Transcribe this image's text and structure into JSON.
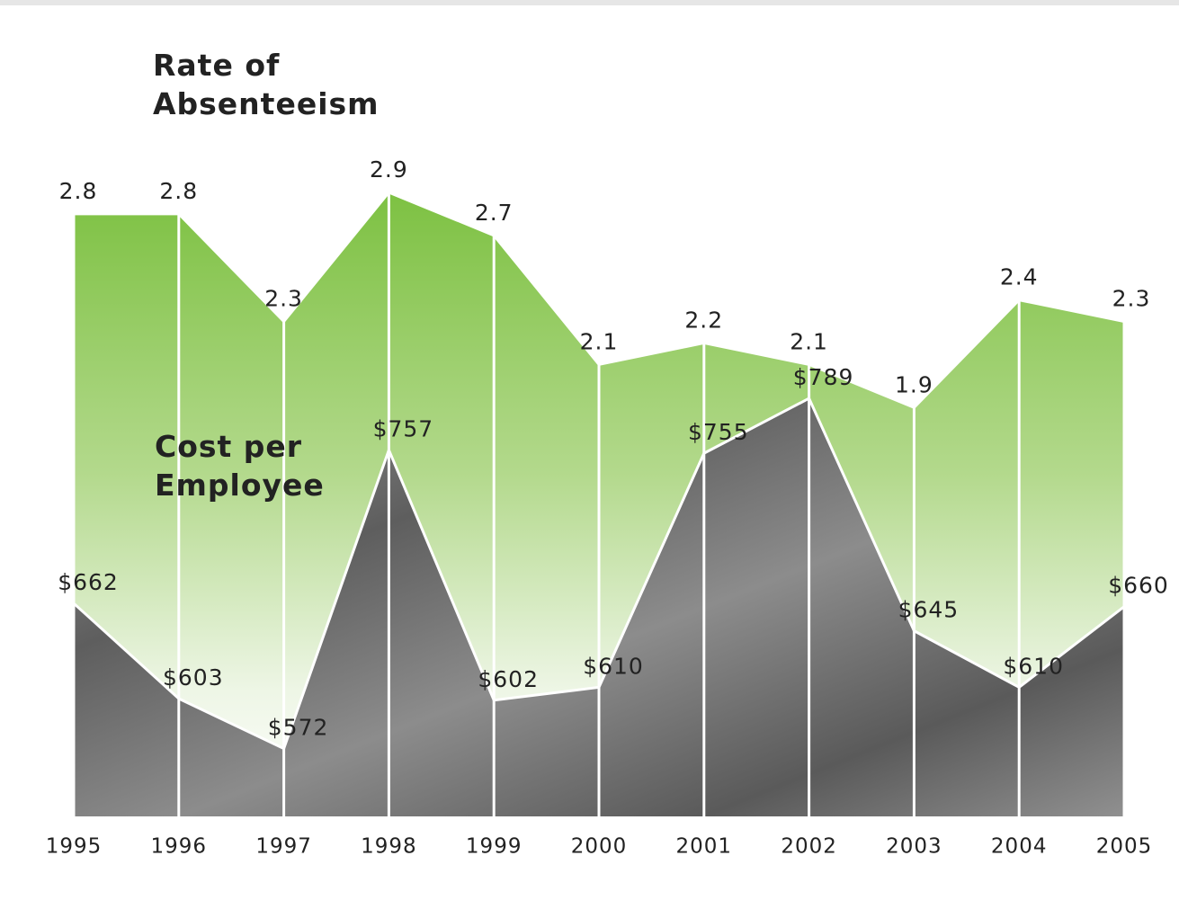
{
  "chart_data": {
    "type": "area",
    "categories": [
      "1995",
      "1996",
      "1997",
      "1998",
      "1999",
      "2000",
      "2001",
      "2002",
      "2003",
      "2004",
      "2005"
    ],
    "series": [
      {
        "name": "Rate of Absenteeism",
        "color": "#7dc142",
        "ylim": [
          0,
          3
        ],
        "values": [
          2.8,
          2.8,
          2.3,
          2.9,
          2.7,
          2.1,
          2.2,
          2.1,
          1.9,
          2.4,
          2.3
        ]
      },
      {
        "name": "Cost per Employee",
        "color": "#6e6e6e",
        "ylim": [
          530,
          930
        ],
        "values": [
          662,
          603,
          572,
          757,
          602,
          610,
          755,
          789,
          645,
          610,
          660
        ],
        "value_labels": [
          "$662",
          "$603",
          "$572",
          "$757",
          "$602",
          "$610",
          "$755",
          "$789",
          "$645",
          "$610",
          "$660"
        ]
      }
    ]
  }
}
